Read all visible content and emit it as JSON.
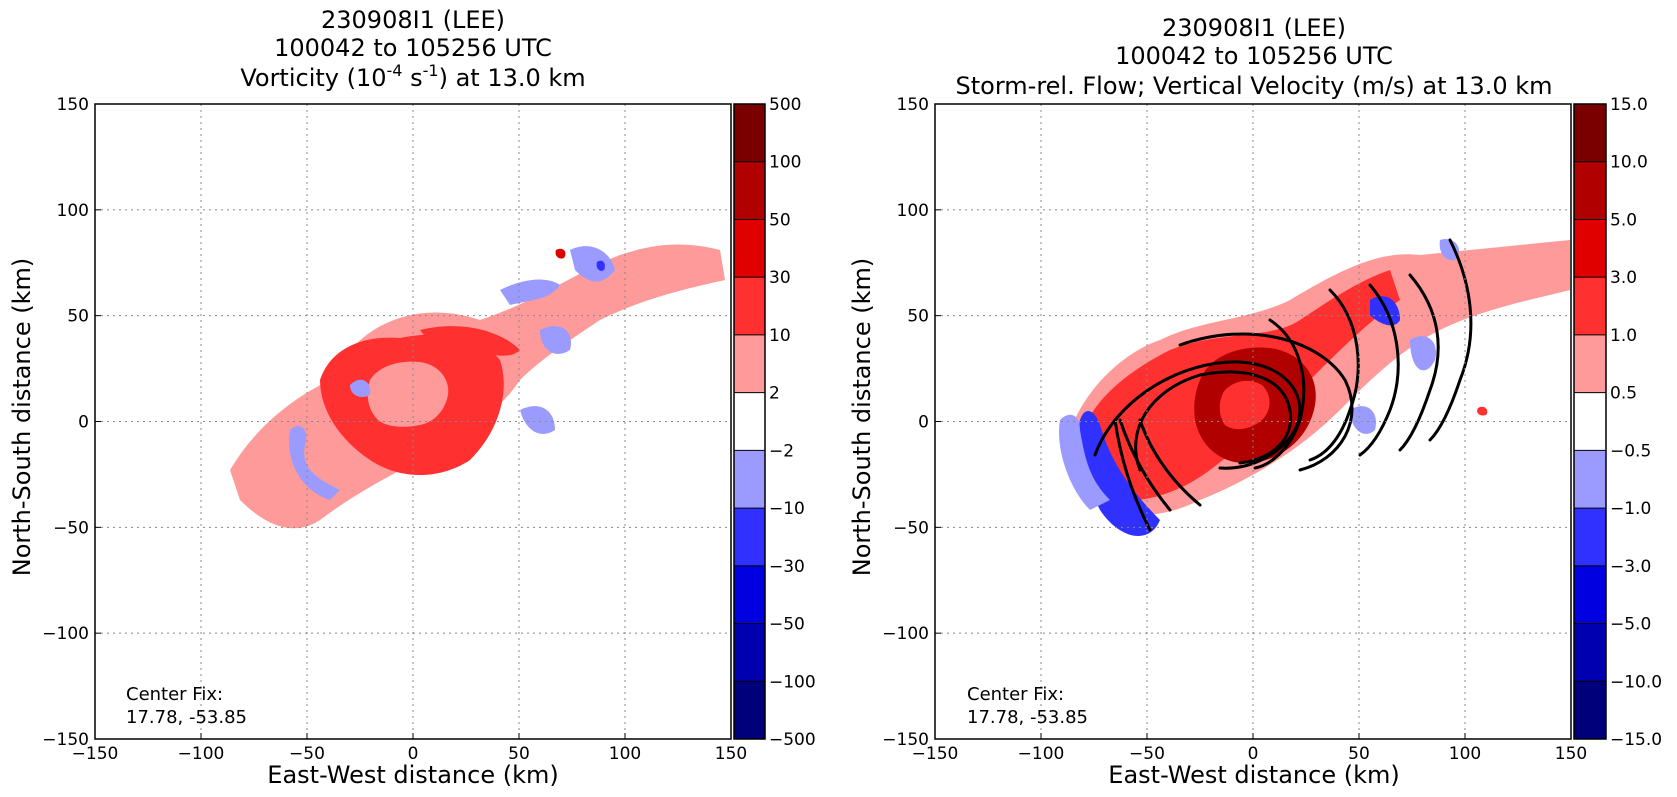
{
  "chart_data": [
    {
      "type": "heatmap",
      "title_line1": "230908I1 (LEE)",
      "title_line2": "100042 to 105256 UTC",
      "title_line3": "Vorticity (10",
      "title_sup1": "-4",
      "title_mid": " s",
      "title_sup2": "-1",
      "title_end": ") at 13.0 km",
      "xlabel": "East-West distance (km)",
      "ylabel": "North-South distance (km)",
      "xlim": [
        -150,
        150
      ],
      "ylim": [
        -150,
        150
      ],
      "xticks": [
        -150,
        -100,
        -50,
        0,
        50,
        100,
        150
      ],
      "yticks": [
        -150,
        -100,
        -50,
        0,
        50,
        100,
        150
      ],
      "xtick_labels": [
        "−150",
        "−100",
        "−50",
        "0",
        "50",
        "100",
        "150"
      ],
      "ytick_labels": [
        "−150",
        "−100",
        "−50",
        "0",
        "50",
        "100",
        "150"
      ],
      "grid": true,
      "annotation_line1": "Center Fix:",
      "annotation_line2": "17.78, -53.85",
      "colorbar_levels": [
        "500",
        "100",
        "50",
        "30",
        "10",
        "2",
        "−2",
        "−10",
        "−30",
        "−50",
        "−100",
        "−500"
      ],
      "colorbar_colors": [
        "#7a0000",
        "#b00000",
        "#e00000",
        "#ff3030",
        "#ff9a9a",
        "#ffffff",
        "#9a9aff",
        "#3030ff",
        "#0000e0",
        "#0000b0",
        "#00007a"
      ]
    },
    {
      "type": "heatmap",
      "title_line1": "230908I1 (LEE)",
      "title_line2": "100042 to 105256 UTC",
      "title_line3": "Storm-rel. Flow; Vertical Velocity (m/s) at 13.0 km",
      "xlabel": "East-West distance (km)",
      "ylabel": "North-South distance (km)",
      "xlim": [
        -150,
        150
      ],
      "ylim": [
        -150,
        150
      ],
      "xticks": [
        -150,
        -100,
        -50,
        0,
        50,
        100,
        150
      ],
      "yticks": [
        -150,
        -100,
        -50,
        0,
        50,
        100,
        150
      ],
      "xtick_labels": [
        "−150",
        "−100",
        "−50",
        "0",
        "50",
        "100",
        "150"
      ],
      "ytick_labels": [
        "−150",
        "−100",
        "−50",
        "0",
        "50",
        "100",
        "150"
      ],
      "grid": true,
      "annotation_line1": "Center Fix:",
      "annotation_line2": "17.78, -53.85",
      "colorbar_levels": [
        "15.0",
        "10.0",
        "5.0",
        "3.0",
        "1.0",
        "0.5",
        "−0.5",
        "−1.0",
        "−3.0",
        "−5.0",
        "−10.0",
        "−15.0"
      ],
      "colorbar_colors": [
        "#7a0000",
        "#b00000",
        "#e00000",
        "#ff3030",
        "#ff9a9a",
        "#ffffff",
        "#9a9aff",
        "#3030ff",
        "#0000e0",
        "#0000b0",
        "#00007a"
      ]
    }
  ]
}
